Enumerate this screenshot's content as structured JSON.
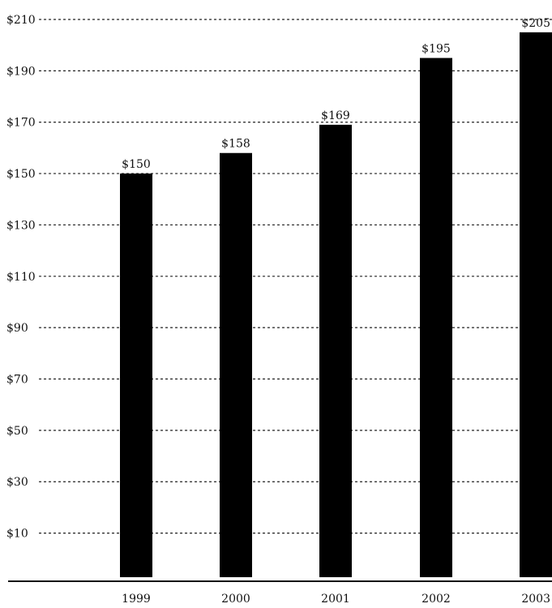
{
  "chart_data": {
    "type": "bar",
    "title": "",
    "xlabel": "",
    "ylabel": "",
    "categories": [
      "1999",
      "2000",
      "2001",
      "2002",
      "2003"
    ],
    "values": [
      150,
      158,
      169,
      195,
      205
    ],
    "value_labels": [
      "$150",
      "$158",
      "$169",
      "$195",
      "$205"
    ],
    "y_ticks": [
      10,
      30,
      50,
      70,
      90,
      110,
      130,
      150,
      170,
      190,
      210
    ],
    "y_tick_labels": [
      "$10",
      "$30",
      "$50",
      "$70",
      "$90",
      "$110",
      "$130",
      "$150",
      "$170",
      "$190",
      "$210"
    ],
    "ylim": [
      -12,
      210
    ],
    "grid": true,
    "grid_style": "dashed",
    "legend": "none",
    "bar_color": "#000000"
  }
}
